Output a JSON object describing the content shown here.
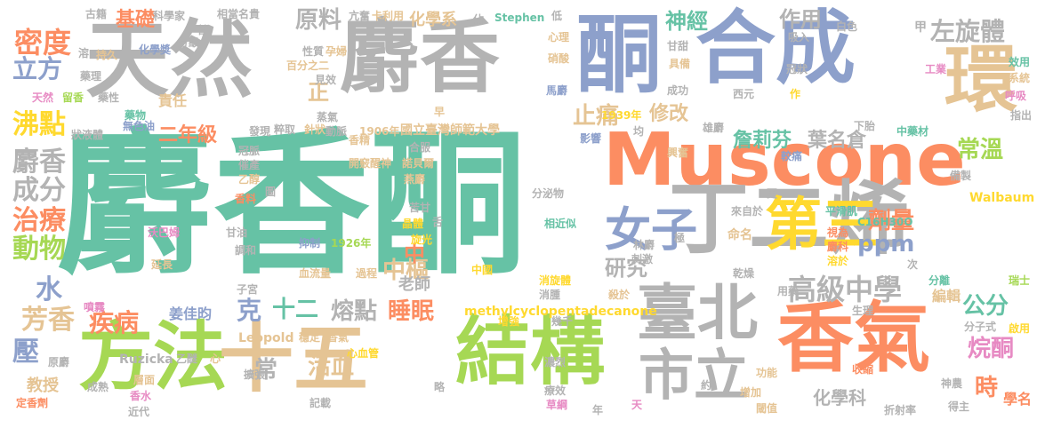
{
  "colors": {
    "green": "#66c2a5",
    "orange": "#fc8d62",
    "blue": "#8da0cb",
    "pink": "#e78ac3",
    "lime": "#a6d854",
    "yellow": "#ffd92f",
    "tan": "#e5c494",
    "gray": "#b3b3b3"
  },
  "words": [
    {
      "text": "麝香酮",
      "color": "green"
    },
    {
      "text": "天然",
      "color": "gray"
    },
    {
      "text": "麝香",
      "color": "gray"
    },
    {
      "text": "合成",
      "color": "blue"
    },
    {
      "text": "酮",
      "color": "blue"
    },
    {
      "text": "環",
      "color": "tan"
    },
    {
      "text": "Muscone",
      "color": "orange"
    },
    {
      "text": "丁二烯",
      "color": "gray"
    },
    {
      "text": "方法",
      "color": "lime"
    },
    {
      "text": "十五",
      "color": "tan"
    },
    {
      "text": "結構",
      "color": "lime"
    },
    {
      "text": "香氣",
      "color": "orange"
    },
    {
      "text": "臺北",
      "color": "gray"
    },
    {
      "text": "市立",
      "color": "gray"
    },
    {
      "text": "第三",
      "color": "yellow"
    },
    {
      "text": "女子",
      "color": "blue"
    },
    {
      "text": "高級中學",
      "color": "gray"
    },
    {
      "text": "左旋體",
      "color": "gray"
    },
    {
      "text": "密度",
      "color": "orange"
    },
    {
      "text": "立方",
      "color": "blue"
    },
    {
      "text": "沸點",
      "color": "yellow"
    },
    {
      "text": "麝香",
      "color": "gray"
    },
    {
      "text": "成分",
      "color": "gray"
    },
    {
      "text": "治療",
      "color": "orange"
    },
    {
      "text": "動物",
      "color": "lime"
    },
    {
      "text": "水",
      "color": "blue"
    },
    {
      "text": "芳香",
      "color": "tan"
    },
    {
      "text": "壓",
      "color": "blue"
    },
    {
      "text": "疾病",
      "color": "orange"
    },
    {
      "text": "教授",
      "color": "tan"
    },
    {
      "text": "原料",
      "color": "gray"
    },
    {
      "text": "基礎",
      "color": "orange"
    },
    {
      "text": "神經",
      "color": "green"
    },
    {
      "text": "作用",
      "color": "gray"
    },
    {
      "text": "止痛",
      "color": "tan"
    },
    {
      "text": "修改",
      "color": "tan"
    },
    {
      "text": "詹莉芬",
      "color": "green"
    },
    {
      "text": "葉名倉",
      "color": "gray"
    },
    {
      "text": "常溫",
      "color": "lime"
    },
    {
      "text": "劑量",
      "color": "orange"
    },
    {
      "text": "ppm",
      "color": "blue"
    },
    {
      "text": "研究",
      "color": "gray"
    },
    {
      "text": "中樞",
      "color": "tan"
    },
    {
      "text": "克",
      "color": "blue"
    },
    {
      "text": "十二",
      "color": "green"
    },
    {
      "text": "熔點",
      "color": "gray"
    },
    {
      "text": "睡眠",
      "color": "orange"
    },
    {
      "text": "公分",
      "color": "green"
    },
    {
      "text": "烷酮",
      "color": "pink"
    },
    {
      "text": "時",
      "color": "orange"
    },
    {
      "text": "學名",
      "color": "orange"
    },
    {
      "text": "姜佳昀",
      "color": "blue"
    },
    {
      "text": "二年級",
      "color": "orange"
    },
    {
      "text": "責任",
      "color": "tan"
    },
    {
      "text": "正",
      "color": "tan"
    },
    {
      "text": "國立臺灣師範大學",
      "color": "tan"
    },
    {
      "text": "中",
      "color": "orange"
    },
    {
      "text": "老師",
      "color": "gray"
    },
    {
      "text": "活血",
      "color": "tan"
    },
    {
      "text": "常",
      "color": "gray"
    },
    {
      "text": "化學科",
      "color": "gray"
    },
    {
      "text": "編輯",
      "color": "tan"
    },
    {
      "text": "化學系",
      "color": "tan"
    },
    {
      "text": "methylcyclopentadecanone",
      "color": "yellow"
    },
    {
      "text": "Leopold",
      "color": "tan"
    },
    {
      "text": "Ruzicka",
      "color": "gray"
    },
    {
      "text": "Stephen",
      "color": "green"
    },
    {
      "text": "Walbaum",
      "color": "yellow"
    },
    {
      "text": "C16H30O",
      "color": "green"
    },
    {
      "text": "1939年",
      "color": "yellow"
    },
    {
      "text": "1906年",
      "color": "tan"
    },
    {
      "text": "1926年",
      "color": "lime"
    },
    {
      "text": "抑制",
      "color": "blue"
    },
    {
      "text": "血流量",
      "color": "tan"
    },
    {
      "text": "過程",
      "color": "tan"
    },
    {
      "text": "心血管",
      "color": "yellow"
    },
    {
      "text": "開竅醒神",
      "color": "tan"
    },
    {
      "text": "諾貝爾",
      "color": "tan"
    },
    {
      "text": "燕麝",
      "color": "tan"
    },
    {
      "text": "晶體",
      "color": "yellow"
    },
    {
      "text": "旋光",
      "color": "yellow"
    },
    {
      "text": "苦甘",
      "color": "gray"
    },
    {
      "text": "分泌物",
      "color": "gray"
    },
    {
      "text": "相近似",
      "color": "green"
    },
    {
      "text": "林麝",
      "color": "gray"
    },
    {
      "text": "刺激",
      "color": "gray"
    },
    {
      "text": "消旋體",
      "color": "yellow"
    },
    {
      "text": "消腫",
      "color": "gray"
    },
    {
      "text": "殺於",
      "color": "tan"
    },
    {
      "text": "幾千",
      "color": "gray"
    },
    {
      "text": "增強",
      "color": "yellow"
    },
    {
      "text": "中國",
      "color": "yellow"
    },
    {
      "text": "濃烈",
      "color": "gray"
    },
    {
      "text": "療效",
      "color": "gray"
    },
    {
      "text": "草綱",
      "color": "pink"
    },
    {
      "text": "天",
      "color": "pink"
    },
    {
      "text": "年",
      "color": "gray"
    },
    {
      "text": "約",
      "color": "gray"
    },
    {
      "text": "增加",
      "color": "tan"
    },
    {
      "text": "功能",
      "color": "tan"
    },
    {
      "text": "閾值",
      "color": "tan"
    },
    {
      "text": "折射率",
      "color": "gray"
    },
    {
      "text": "收縮",
      "color": "orange"
    },
    {
      "text": "神農",
      "color": "gray"
    },
    {
      "text": "得主",
      "color": "gray"
    },
    {
      "text": "分子式",
      "color": "gray"
    },
    {
      "text": "瑞士",
      "color": "lime"
    },
    {
      "text": "啟用",
      "color": "yellow"
    },
    {
      "text": "生理",
      "color": "gray"
    },
    {
      "text": "分離",
      "color": "green"
    },
    {
      "text": "用藥",
      "color": "gray"
    },
    {
      "text": "乾燥",
      "color": "gray"
    },
    {
      "text": "次",
      "color": "gray"
    },
    {
      "text": "麝科",
      "color": "orange"
    },
    {
      "text": "溶於",
      "color": "yellow"
    },
    {
      "text": "視為",
      "color": "orange"
    },
    {
      "text": "平滑肌",
      "color": "green"
    },
    {
      "text": "來自於",
      "color": "gray"
    },
    {
      "text": "命名",
      "color": "tan"
    },
    {
      "text": "極",
      "color": "gray"
    },
    {
      "text": "更",
      "color": "gray"
    },
    {
      "text": "備製",
      "color": "gray"
    },
    {
      "text": "中藥材",
      "color": "green"
    },
    {
      "text": "較痛",
      "color": "blue"
    },
    {
      "text": "雄麝",
      "color": "gray"
    },
    {
      "text": "興奮",
      "color": "tan"
    },
    {
      "text": "影響",
      "color": "blue"
    },
    {
      "text": "均",
      "color": "gray"
    },
    {
      "text": "下胎",
      "color": "gray"
    },
    {
      "text": "指出",
      "color": "gray"
    },
    {
      "text": "呼吸",
      "color": "pink"
    },
    {
      "text": "系統",
      "color": "tan"
    },
    {
      "text": "效用",
      "color": "green"
    },
    {
      "text": "工業",
      "color": "pink"
    },
    {
      "text": "冠狀",
      "color": "gray"
    },
    {
      "text": "吸入",
      "color": "gray"
    },
    {
      "text": "白色",
      "color": "gray"
    },
    {
      "text": "甲",
      "color": "gray"
    },
    {
      "text": "西元",
      "color": "gray"
    },
    {
      "text": "作",
      "color": "yellow"
    },
    {
      "text": "成功",
      "color": "gray"
    },
    {
      "text": "馬麝",
      "color": "blue"
    },
    {
      "text": "具備",
      "color": "tan"
    },
    {
      "text": "甘甜",
      "color": "gray"
    },
    {
      "text": "硝酸",
      "color": "tan"
    },
    {
      "text": "心理",
      "color": "tan"
    },
    {
      "text": "低",
      "color": "gray"
    },
    {
      "text": "佔",
      "color": "gray"
    },
    {
      "text": "卡利用",
      "color": "tan"
    },
    {
      "text": "亢奮",
      "color": "gray"
    },
    {
      "text": "相當名貴",
      "color": "gray"
    },
    {
      "text": "科學家",
      "color": "gray"
    },
    {
      "text": "古籍",
      "color": "gray"
    },
    {
      "text": "化學獎",
      "color": "blue"
    },
    {
      "text": "分級",
      "color": "gray"
    },
    {
      "text": "首",
      "color": "gray"
    },
    {
      "text": "藥理",
      "color": "gray"
    },
    {
      "text": "持久",
      "color": "tan"
    },
    {
      "text": "溶",
      "color": "gray"
    },
    {
      "text": "天然",
      "color": "pink"
    },
    {
      "text": "留香",
      "color": "lime"
    },
    {
      "text": "藥性",
      "color": "gray"
    },
    {
      "text": "藥物",
      "color": "green"
    },
    {
      "text": "無色油",
      "color": "blue"
    },
    {
      "text": "狀液體",
      "color": "gray"
    },
    {
      "text": "香精",
      "color": "tan"
    },
    {
      "text": "發現",
      "color": "gray"
    },
    {
      "text": "粹取",
      "color": "gray"
    },
    {
      "text": "針狀",
      "color": "tan"
    },
    {
      "text": "動脈",
      "color": "gray"
    },
    {
      "text": "冠脈",
      "color": "gray"
    },
    {
      "text": "催產",
      "color": "gray"
    },
    {
      "text": "乙醇",
      "color": "tan"
    },
    {
      "text": "香料",
      "color": "orange"
    },
    {
      "text": "沃巴姆",
      "color": "pink"
    },
    {
      "text": "甘油",
      "color": "gray"
    },
    {
      "text": "調和",
      "color": "gray"
    },
    {
      "text": "延長",
      "color": "tan"
    },
    {
      "text": "子宮",
      "color": "gray"
    },
    {
      "text": "噴霧",
      "color": "pink"
    },
    {
      "text": "穩定",
      "color": "tan"
    },
    {
      "text": "香氣",
      "color": "tan"
    },
    {
      "text": "乙醚",
      "color": "gray"
    },
    {
      "text": "心",
      "color": "tan"
    },
    {
      "text": "原麝",
      "color": "gray"
    },
    {
      "text": "擴張",
      "color": "gray"
    },
    {
      "text": "成熟",
      "color": "gray"
    },
    {
      "text": "層面",
      "color": "tan"
    },
    {
      "text": "香水",
      "color": "pink"
    },
    {
      "text": "定香劑",
      "color": "orange"
    },
    {
      "text": "近代",
      "color": "gray"
    },
    {
      "text": "記載",
      "color": "gray"
    },
    {
      "text": "性質",
      "color": "gray"
    },
    {
      "text": "孕婦",
      "color": "tan"
    },
    {
      "text": "百分之二",
      "color": "tan"
    },
    {
      "text": "見效",
      "color": "gray"
    },
    {
      "text": "蒸氣",
      "color": "gray"
    },
    {
      "text": "早",
      "color": "tan"
    },
    {
      "text": "合服",
      "color": "gray"
    },
    {
      "text": "圖",
      "color": "gray"
    },
    {
      "text": "舌",
      "color": "gray"
    },
    {
      "text": "略",
      "color": "gray"
    }
  ]
}
